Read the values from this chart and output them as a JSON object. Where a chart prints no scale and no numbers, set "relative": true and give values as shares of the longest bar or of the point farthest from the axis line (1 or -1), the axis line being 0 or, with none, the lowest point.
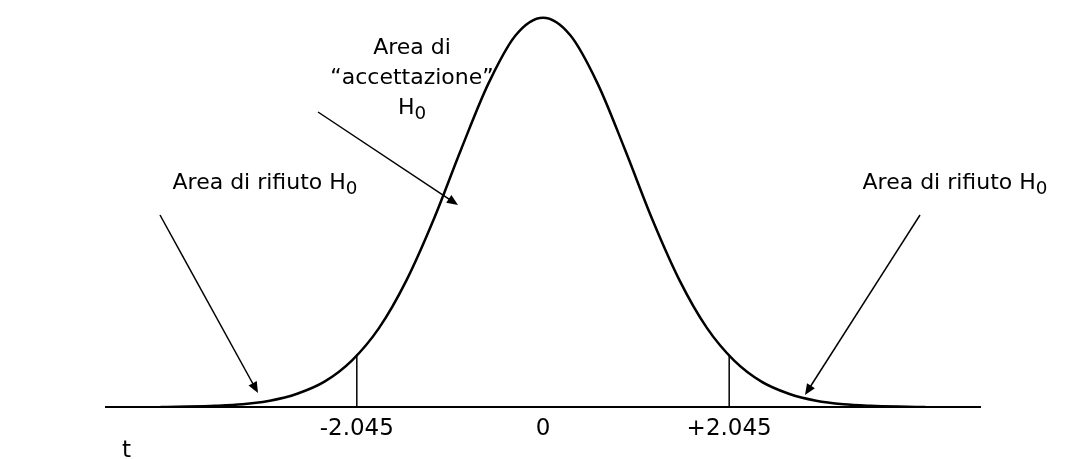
{
  "chart_data": {
    "type": "line",
    "relative": true,
    "xlabel": "t",
    "marker": "none",
    "legend": false,
    "grid": false,
    "x": [
      -4.2,
      -3.9,
      -3.6,
      -3.3,
      -3.0,
      -2.7,
      -2.4,
      -2.1,
      -1.8,
      -1.5,
      -1.2,
      -0.9,
      -0.6,
      -0.3,
      0,
      0.3,
      0.6,
      0.9,
      1.2,
      1.5,
      1.8,
      2.1,
      2.4,
      2.7,
      3.0,
      3.3,
      3.6,
      3.9,
      4.2
    ],
    "series": [
      {
        "color": "#000000",
        "values": [
          0.001,
          0.002,
          0.004,
          0.008,
          0.017,
          0.035,
          0.066,
          0.12,
          0.204,
          0.326,
          0.483,
          0.662,
          0.831,
          0.955,
          1,
          0.955,
          0.831,
          0.662,
          0.483,
          0.326,
          0.204,
          0.12,
          0.066,
          0.035,
          0.017,
          0.008,
          0.004,
          0.002,
          0.001
        ]
      }
    ],
    "xlim": [
      -4.8,
      4.8
    ],
    "xticks": [
      -2.045,
      0,
      {
        "value": 2.045,
        "label": "+2.045"
      }
    ],
    "ref_lines": [
      {
        "axis": "x",
        "value": -2.045,
        "color": "#000000"
      },
      {
        "axis": "x",
        "value": 2.045,
        "color": "#000000"
      }
    ],
    "annotations": [
      "Area di “accettazione” H$_{0}$",
      "Area di rifiuto H$_{0}$",
      "Area di rifiuto H$_{0}$"
    ]
  }
}
